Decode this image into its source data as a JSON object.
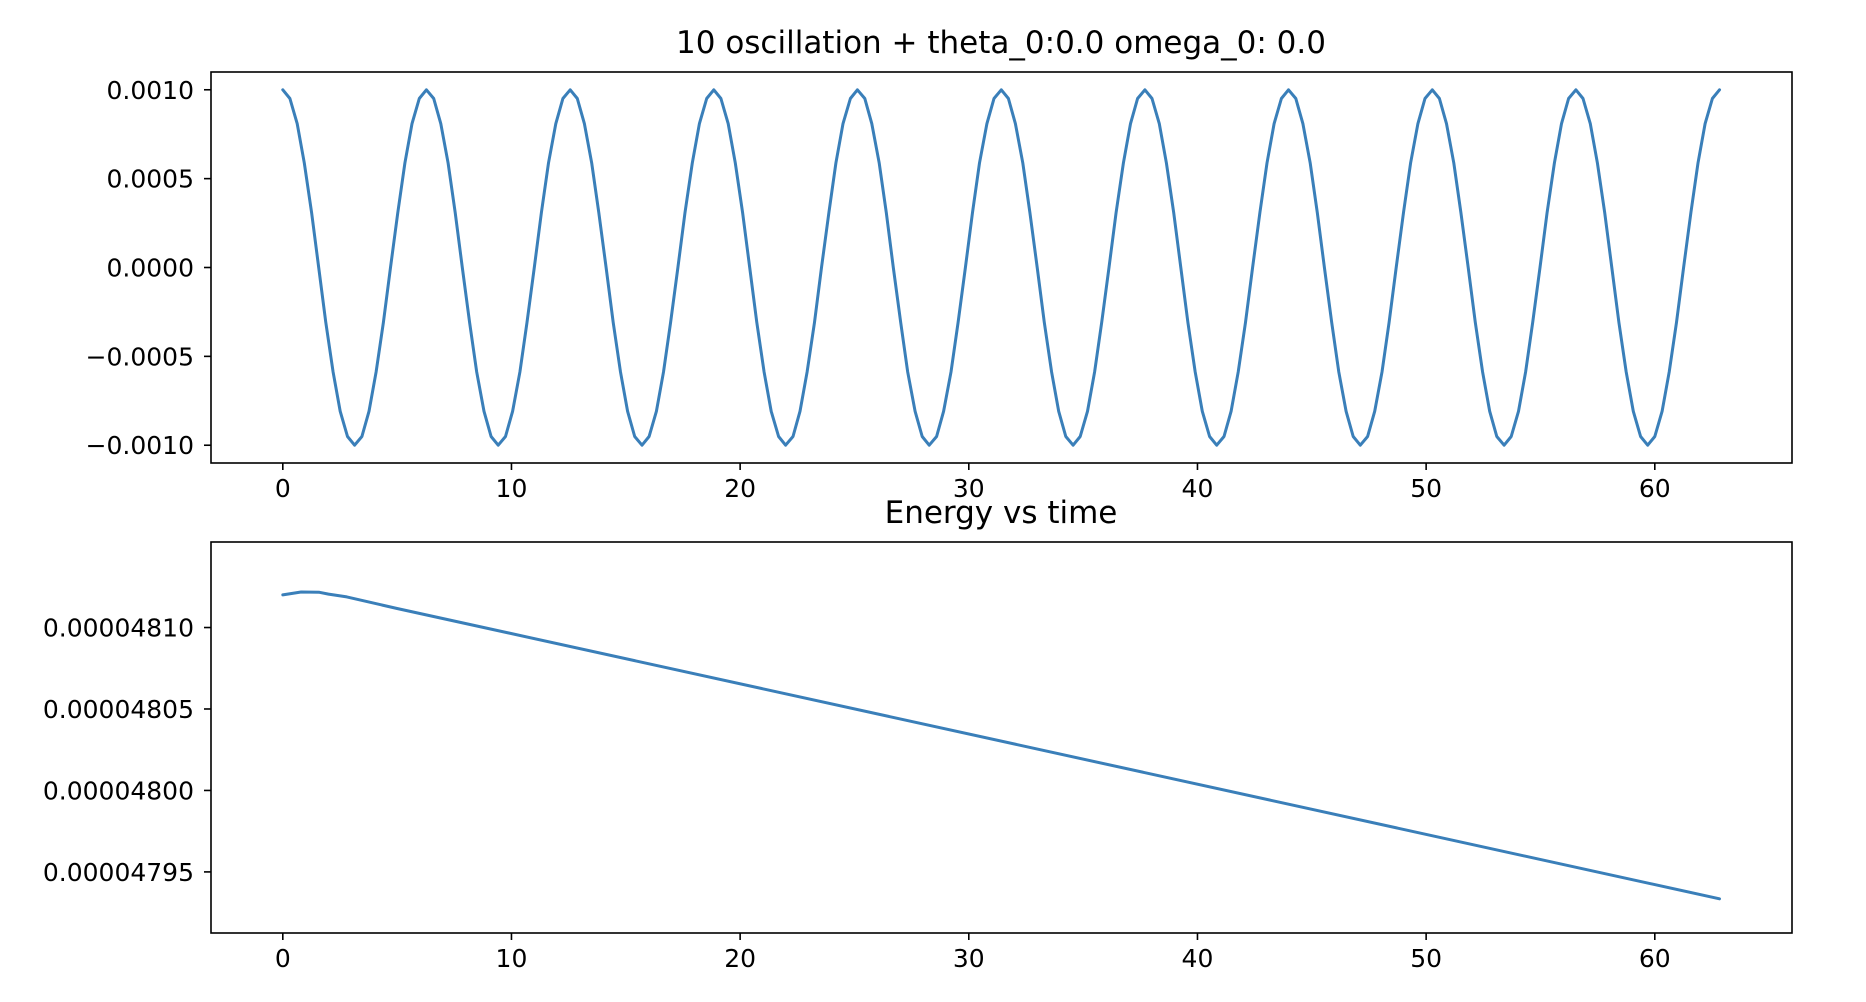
{
  "chart_data": [
    {
      "type": "line",
      "title": "10 oscillation + theta_0:0.0 omega_0: 0.0",
      "xlabel": "",
      "ylabel": "",
      "xlim": [
        -3.14,
        66.0
      ],
      "ylim": [
        -0.0011,
        0.0011
      ],
      "x_ticks": [
        0,
        10,
        20,
        30,
        40,
        50,
        60
      ],
      "x_tick_labels": [
        "0",
        "10",
        "20",
        "30",
        "40",
        "50",
        "60"
      ],
      "y_ticks": [
        0.001,
        0.0005,
        0.0,
        -0.0005,
        -0.001
      ],
      "y_tick_labels": [
        "0.0010",
        "0.0005",
        "0.0000",
        "−0.0005",
        "−0.0010"
      ],
      "grid": false,
      "series_color": "#3a7fb9",
      "series": [
        {
          "x": [
            0.0,
            0.31,
            0.63,
            0.94,
            1.26,
            1.57,
            1.88,
            2.2,
            2.51,
            2.83,
            3.14,
            3.46,
            3.77,
            4.08,
            4.4,
            4.71,
            5.03,
            5.34,
            5.65,
            5.97,
            6.28,
            6.6,
            6.91,
            7.23,
            7.54,
            7.85,
            8.17,
            8.48,
            8.8,
            9.11,
            9.42,
            9.74,
            10.05,
            10.37,
            10.68,
            11.0,
            11.31,
            11.62,
            11.94,
            12.25,
            12.57,
            12.88,
            13.19,
            13.51,
            13.82,
            14.14,
            14.45,
            14.77,
            15.08,
            15.39,
            15.71,
            16.02,
            16.34,
            16.65,
            16.96,
            17.28,
            17.59,
            17.91,
            18.22,
            18.54,
            18.85,
            19.16,
            19.48,
            19.79,
            20.11,
            20.42,
            20.73,
            21.05,
            21.36,
            21.68,
            21.99,
            22.31,
            22.62,
            22.93,
            23.25,
            23.56,
            23.88,
            24.19,
            24.5,
            24.82,
            25.13,
            25.45,
            25.76,
            26.08,
            26.39,
            26.7,
            27.02,
            27.33,
            27.65,
            27.96,
            28.27,
            28.59,
            28.9,
            29.22,
            29.53,
            29.85,
            30.16,
            30.47,
            30.79,
            31.1,
            31.42,
            31.73,
            32.04,
            32.36,
            32.67,
            32.99,
            33.3,
            33.62,
            33.93,
            34.24,
            34.56,
            34.87,
            35.19,
            35.5,
            35.81,
            36.13,
            36.44,
            36.76,
            37.07,
            37.38,
            37.7,
            38.01,
            38.33,
            38.64,
            38.96,
            39.27,
            39.58,
            39.9,
            40.21,
            40.53,
            40.84,
            41.16,
            41.47,
            41.78,
            42.1,
            42.41,
            42.73,
            43.04,
            43.35,
            43.67,
            43.98,
            44.3,
            44.61,
            44.93,
            45.24,
            45.55,
            45.87,
            46.18,
            46.5,
            46.81,
            47.12,
            47.44,
            47.75,
            48.07,
            48.38,
            48.69,
            49.01,
            49.32,
            49.64,
            49.95,
            50.27,
            50.58,
            50.89,
            51.21,
            51.52,
            51.84,
            52.15,
            52.47,
            52.78,
            53.09,
            53.41,
            53.72,
            54.04,
            54.35,
            54.66,
            54.98,
            55.29,
            55.61,
            55.92,
            56.23,
            56.55,
            56.86,
            57.18,
            57.49,
            57.81,
            58.12,
            58.43,
            58.75,
            59.06,
            59.38,
            59.69,
            60.0,
            60.32,
            60.63,
            60.95,
            61.26,
            61.58,
            61.89,
            62.2,
            62.52,
            62.83
          ],
          "y": [
            0.001,
            0.000951,
            0.000809,
            0.000588,
            0.000309,
            0.0,
            -0.000309,
            -0.000588,
            -0.000809,
            -0.000951,
            -0.001,
            -0.000951,
            -0.000809,
            -0.000588,
            -0.000309,
            0.0,
            0.000309,
            0.000588,
            0.000809,
            0.000951,
            0.001,
            0.000951,
            0.000809,
            0.000588,
            0.000309,
            0.0,
            -0.000309,
            -0.000588,
            -0.000809,
            -0.000951,
            -0.001,
            -0.000951,
            -0.000809,
            -0.000588,
            -0.000309,
            0.0,
            0.000309,
            0.000588,
            0.000809,
            0.000951,
            0.001,
            0.000951,
            0.000809,
            0.000588,
            0.000309,
            0.0,
            -0.000309,
            -0.000588,
            -0.000809,
            -0.000951,
            -0.001,
            -0.000951,
            -0.000809,
            -0.000588,
            -0.000309,
            0.0,
            0.000309,
            0.000588,
            0.000809,
            0.000951,
            0.001,
            0.000951,
            0.000809,
            0.000588,
            0.000309,
            0.0,
            -0.000309,
            -0.000588,
            -0.000809,
            -0.000951,
            -0.001,
            -0.000951,
            -0.000809,
            -0.000588,
            -0.000309,
            0.0,
            0.000309,
            0.000588,
            0.000809,
            0.000951,
            0.001,
            0.000951,
            0.000809,
            0.000588,
            0.000309,
            0.0,
            -0.000309,
            -0.000588,
            -0.000809,
            -0.000951,
            -0.001,
            -0.000951,
            -0.000809,
            -0.000588,
            -0.000309,
            0.0,
            0.000309,
            0.000588,
            0.000809,
            0.000951,
            0.001,
            0.000951,
            0.000809,
            0.000588,
            0.000309,
            0.0,
            -0.000309,
            -0.000588,
            -0.000809,
            -0.000951,
            -0.001,
            -0.000951,
            -0.000809,
            -0.000588,
            -0.000309,
            0.0,
            0.000309,
            0.000588,
            0.000809,
            0.000951,
            0.001,
            0.000951,
            0.000809,
            0.000588,
            0.000309,
            0.0,
            -0.000309,
            -0.000588,
            -0.000809,
            -0.000951,
            -0.001,
            -0.000951,
            -0.000809,
            -0.000588,
            -0.000309,
            0.0,
            0.000309,
            0.000588,
            0.000809,
            0.000951,
            0.001,
            0.000951,
            0.000809,
            0.000588,
            0.000309,
            0.0,
            -0.000309,
            -0.000588,
            -0.000809,
            -0.000951,
            -0.001,
            -0.000951,
            -0.000809,
            -0.000588,
            -0.000309,
            0.0,
            0.000309,
            0.000588,
            0.000809,
            0.000951,
            0.001,
            0.000951,
            0.000809,
            0.000588,
            0.000309,
            0.0,
            -0.000309,
            -0.000588,
            -0.000809,
            -0.000951,
            -0.001,
            -0.000951,
            -0.000809,
            -0.000588,
            -0.000309,
            0.0,
            0.000309,
            0.000588,
            0.000809,
            0.000951,
            0.001,
            0.000951,
            0.000809,
            0.000588,
            0.000309,
            0.0,
            -0.000309,
            -0.000588,
            -0.000809,
            -0.000951,
            -0.001,
            -0.000951,
            -0.000809,
            -0.000588,
            -0.000309,
            0.0,
            0.000309,
            0.000588,
            0.000809,
            0.000951,
            0.001
          ]
        }
      ]
    },
    {
      "type": "line",
      "title": "Energy vs time",
      "xlabel": "",
      "ylabel": "",
      "xlim": [
        -3.14,
        66.0
      ],
      "ylim": [
        4.79125e-05,
        4.81525e-05
      ],
      "x_ticks": [
        0,
        10,
        20,
        30,
        40,
        50,
        60
      ],
      "x_tick_labels": [
        "0",
        "10",
        "20",
        "30",
        "40",
        "50",
        "60"
      ],
      "y_ticks": [
        4.81e-05,
        4.805e-05,
        4.8e-05,
        4.795e-05
      ],
      "y_tick_labels": [
        "0.00004810",
        "0.00004805",
        "0.00004800",
        "0.00004795"
      ],
      "grid": false,
      "series_color": "#3a7fb9",
      "series": [
        {
          "x": [
            0.0,
            0.8,
            1.6,
            2.0,
            2.8,
            5.0,
            62.83
          ],
          "y": [
            4.812e-05,
            4.81218e-05,
            4.81216e-05,
            4.81205e-05,
            4.81188e-05,
            4.81117e-05,
            4.79335e-05
          ]
        }
      ]
    }
  ]
}
